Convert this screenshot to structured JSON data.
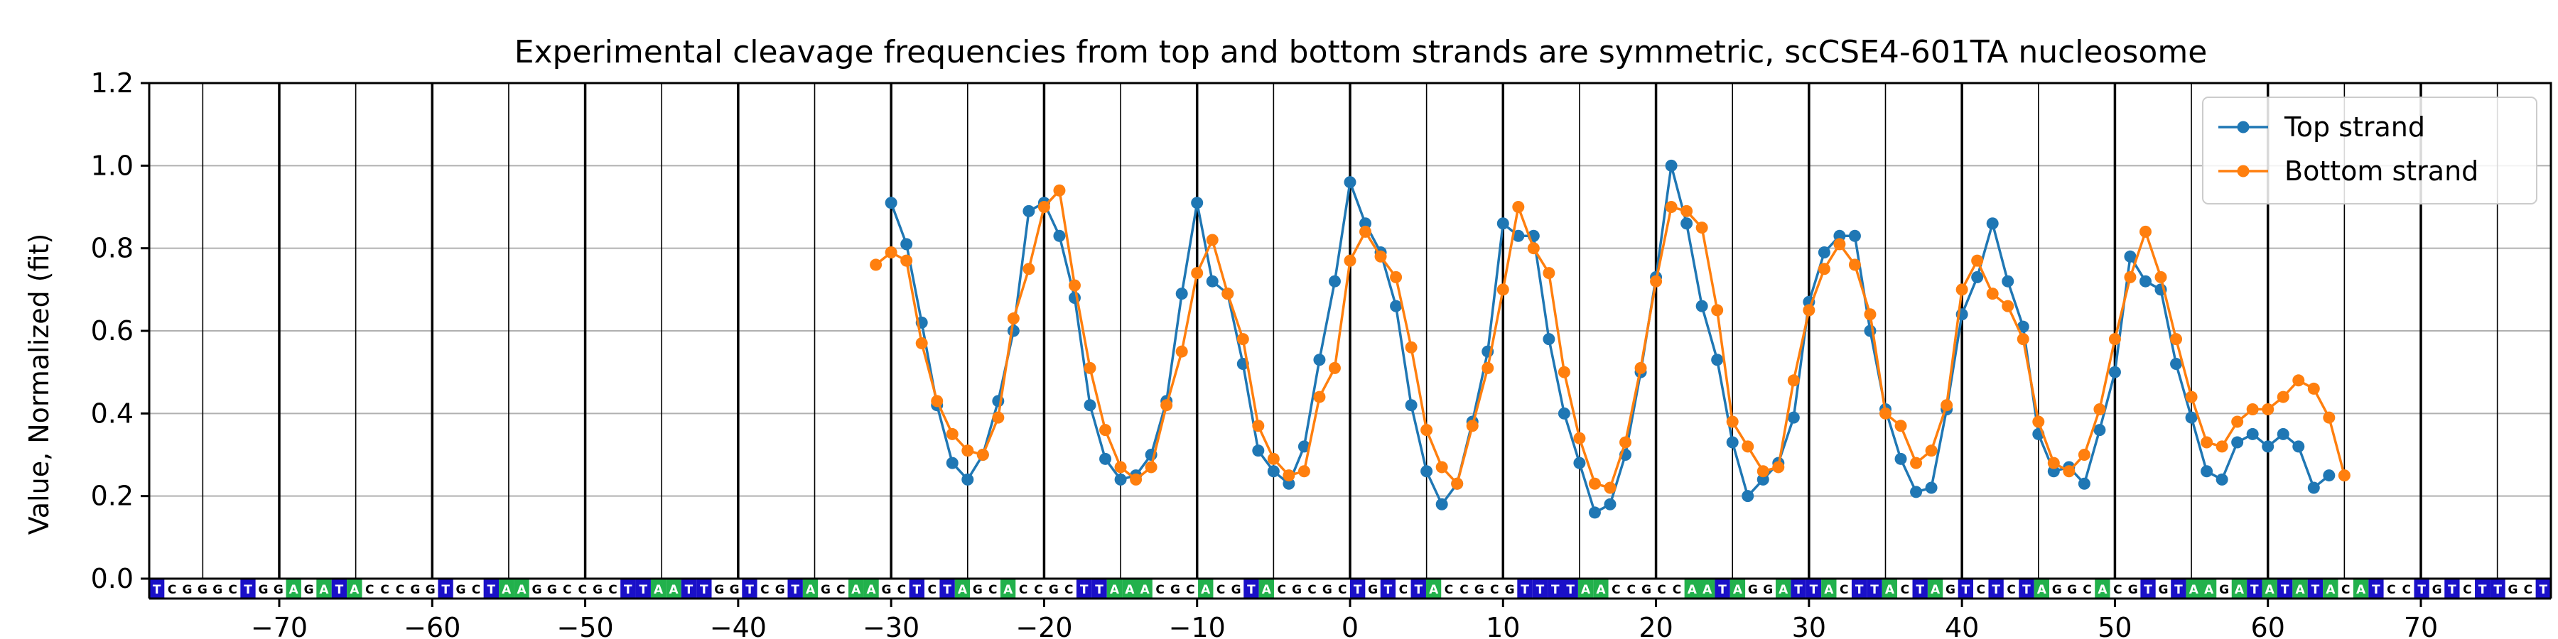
{
  "chart_data": {
    "type": "line",
    "title": "Experimental cleavage frequencies from top and bottom strands are symmetric, scCSE4-601TA nucleosome",
    "xlabel": "",
    "ylabel": "Value, Normalized (fit)",
    "xlim": [
      -78.5,
      78.5
    ],
    "ylim": [
      0,
      1.2
    ],
    "xticks": [
      -70,
      -60,
      -50,
      -40,
      -30,
      -20,
      -10,
      0,
      10,
      20,
      30,
      40,
      50,
      60,
      70
    ],
    "yticks": [
      0.0,
      0.2,
      0.4,
      0.6,
      0.8,
      1.0,
      1.2
    ],
    "grid": true,
    "legend": "top-right",
    "sequence": "TCGGGCTGGAGATACCCGGTGCTAAGGCCGCTTAATTGGTCGTAGCAAGCTCTAGCACCGCTTAAACGCACGTACGCGCTGTCTACCGCGTTTTAACCGCCAATAGGATTACTTACTAGTCTCTAGGCACGTGTAAGATATATACATCCTGTCTTGCT",
    "sequence_start": -78,
    "base_colors": {
      "A": "#22b14c",
      "T": "#1a10c8",
      "G": "#ffffff",
      "C": "#ffffff"
    },
    "series": [
      {
        "name": "Top strand",
        "color": "#1f77b4",
        "x": [
          -30,
          -29,
          -28,
          -27,
          -26,
          -25,
          -24,
          -23,
          -22,
          -21,
          -20,
          -19,
          -18,
          -17,
          -16,
          -15,
          -14,
          -13,
          -12,
          -11,
          -10,
          -9,
          -8,
          -7,
          -6,
          -5,
          -4,
          -3,
          -2,
          -1,
          0,
          1,
          2,
          3,
          4,
          5,
          6,
          7,
          8,
          9,
          10,
          11,
          12,
          13,
          14,
          15,
          16,
          17,
          18,
          19,
          20,
          21,
          22,
          23,
          24,
          25,
          26,
          27,
          28,
          29,
          30,
          31,
          32,
          33,
          34,
          35,
          36,
          37,
          38,
          39,
          40,
          41,
          42,
          43,
          44,
          45,
          46,
          47,
          48,
          49,
          50,
          51,
          52,
          53,
          54,
          55,
          56,
          57,
          58,
          59,
          60,
          61,
          62,
          63,
          64
        ],
        "y": [
          0.91,
          0.81,
          0.62,
          0.42,
          0.28,
          0.24,
          0.3,
          0.43,
          0.6,
          0.89,
          0.91,
          0.83,
          0.68,
          0.42,
          0.29,
          0.24,
          0.25,
          0.3,
          0.43,
          0.69,
          0.91,
          0.72,
          0.69,
          0.52,
          0.31,
          0.26,
          0.23,
          0.32,
          0.53,
          0.72,
          0.96,
          0.86,
          0.79,
          0.66,
          0.42,
          0.26,
          0.18,
          0.23,
          0.38,
          0.55,
          0.86,
          0.83,
          0.83,
          0.58,
          0.4,
          0.28,
          0.16,
          0.18,
          0.3,
          0.5,
          0.73,
          1.0,
          0.86,
          0.66,
          0.53,
          0.33,
          0.2,
          0.24,
          0.28,
          0.39,
          0.67,
          0.79,
          0.83,
          0.83,
          0.6,
          0.41,
          0.29,
          0.21,
          0.22,
          0.41,
          0.64,
          0.73,
          0.86,
          0.72,
          0.61,
          0.35,
          0.26,
          0.27,
          0.23,
          0.36,
          0.5,
          0.78,
          0.72,
          0.7,
          0.52,
          0.39,
          0.26,
          0.24,
          0.33,
          0.35,
          0.32,
          0.35,
          0.32,
          0.22,
          0.25
        ]
      },
      {
        "name": "Bottom strand",
        "color": "#ff7f0e",
        "x": [
          -31,
          -30,
          -29,
          -28,
          -27,
          -26,
          -25,
          -24,
          -23,
          -22,
          -21,
          -20,
          -19,
          -18,
          -17,
          -16,
          -15,
          -14,
          -13,
          -12,
          -11,
          -10,
          -9,
          -8,
          -7,
          -6,
          -5,
          -4,
          -3,
          -2,
          -1,
          0,
          1,
          2,
          3,
          4,
          5,
          6,
          7,
          8,
          9,
          10,
          11,
          12,
          13,
          14,
          15,
          16,
          17,
          18,
          19,
          20,
          21,
          22,
          23,
          24,
          25,
          26,
          27,
          28,
          29,
          30,
          31,
          32,
          33,
          34,
          35,
          36,
          37,
          38,
          39,
          40,
          41,
          42,
          43,
          44,
          45,
          46,
          47,
          48,
          49,
          50,
          51,
          52,
          53,
          54,
          55,
          56,
          57,
          58,
          59,
          60,
          61,
          62,
          63,
          64,
          65
        ],
        "y": [
          0.76,
          0.79,
          0.77,
          0.57,
          0.43,
          0.35,
          0.31,
          0.3,
          0.39,
          0.63,
          0.75,
          0.9,
          0.94,
          0.71,
          0.51,
          0.36,
          0.27,
          0.24,
          0.27,
          0.42,
          0.55,
          0.74,
          0.82,
          0.69,
          0.58,
          0.37,
          0.29,
          0.25,
          0.26,
          0.44,
          0.51,
          0.77,
          0.84,
          0.78,
          0.73,
          0.56,
          0.36,
          0.27,
          0.23,
          0.37,
          0.51,
          0.7,
          0.9,
          0.8,
          0.74,
          0.5,
          0.34,
          0.23,
          0.22,
          0.33,
          0.51,
          0.72,
          0.9,
          0.89,
          0.85,
          0.65,
          0.38,
          0.32,
          0.26,
          0.27,
          0.48,
          0.65,
          0.75,
          0.81,
          0.76,
          0.64,
          0.4,
          0.37,
          0.28,
          0.31,
          0.42,
          0.7,
          0.77,
          0.69,
          0.66,
          0.58,
          0.38,
          0.28,
          0.26,
          0.3,
          0.41,
          0.58,
          0.73,
          0.84,
          0.73,
          0.58,
          0.44,
          0.33,
          0.32,
          0.38,
          0.41,
          0.41,
          0.44,
          0.48,
          0.46,
          0.39,
          0.25
        ]
      }
    ]
  }
}
